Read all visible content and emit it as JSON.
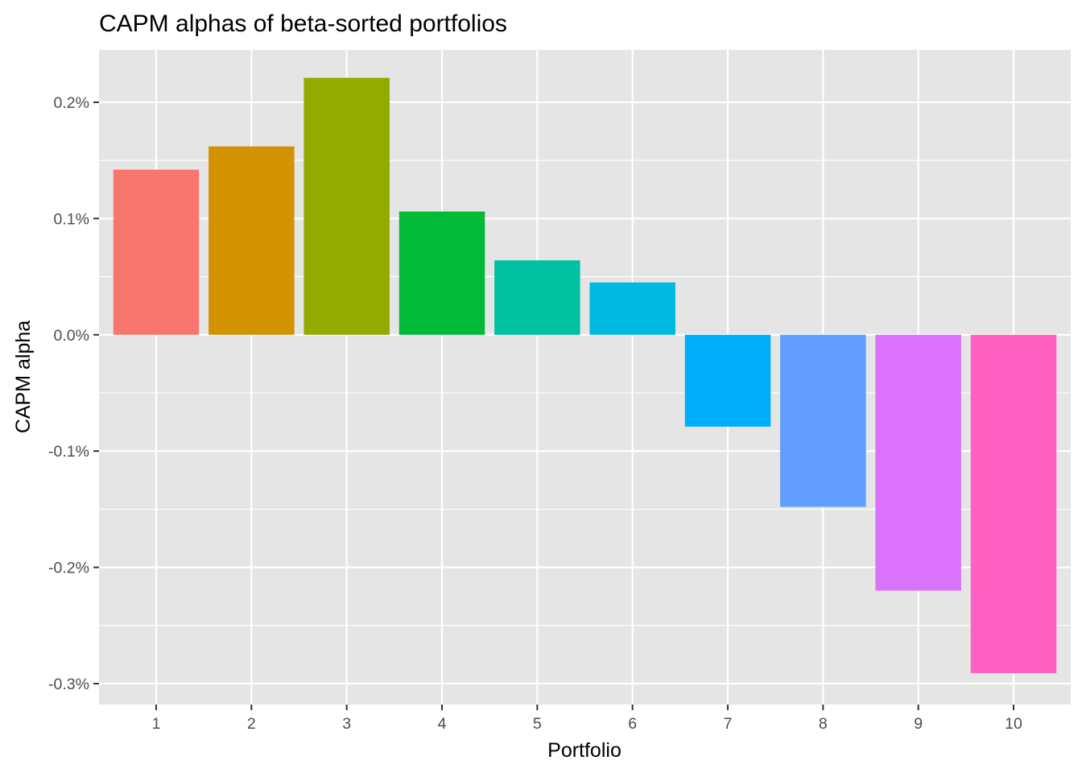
{
  "chart_data": {
    "type": "bar",
    "title": "CAPM alphas of beta-sorted portfolios",
    "xlabel": "Portfolio",
    "ylabel": "CAPM alpha",
    "categories": [
      "1",
      "2",
      "3",
      "4",
      "5",
      "6",
      "7",
      "8",
      "9",
      "10"
    ],
    "values": [
      0.142,
      0.162,
      0.221,
      0.106,
      0.064,
      0.045,
      -0.079,
      -0.148,
      -0.22,
      -0.291
    ],
    "value_unit": "%",
    "ylim": [
      -0.318,
      0.245
    ],
    "y_ticks": [
      0.2,
      0.1,
      0.0,
      -0.1,
      -0.2,
      -0.3
    ],
    "y_tick_labels": [
      "0.2%",
      "0.1%",
      "0.0%",
      "-0.1%",
      "-0.2%",
      "-0.3%"
    ],
    "colors": [
      "#F8766D",
      "#D39200",
      "#93AA00",
      "#00BA38",
      "#00C19F",
      "#00B9E3",
      "#00ADFA",
      "#619CFF",
      "#DB72FB",
      "#FF61C3"
    ],
    "panel_background": "#E5E5E5",
    "grid": true,
    "legend": "none"
  }
}
